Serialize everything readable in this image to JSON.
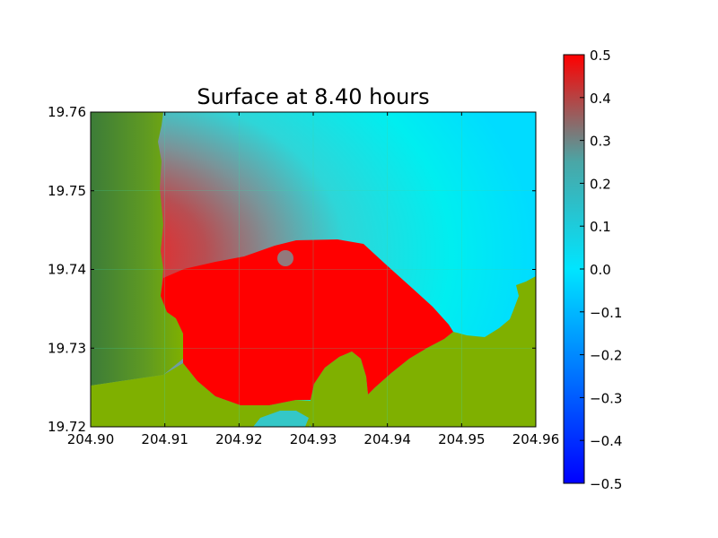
{
  "chart_data": {
    "type": "heatmap",
    "title": "Surface at 8.40 hours",
    "xlabel": "",
    "ylabel": "",
    "xlim": [
      204.9,
      204.96
    ],
    "ylim": [
      19.72,
      19.76
    ],
    "x_ticks": [
      "204.90",
      "204.91",
      "204.92",
      "204.93",
      "204.94",
      "204.95",
      "204.96"
    ],
    "y_ticks": [
      "19.76",
      "19.75",
      "19.74",
      "19.73",
      "19.72"
    ],
    "grid": true,
    "colorbar": {
      "range": [
        -0.5,
        0.5
      ],
      "ticks": [
        "0.5",
        "0.4",
        "0.3",
        "0.2",
        "0.1",
        "0.0",
        "−0.1",
        "−0.2",
        "−0.3",
        "−0.4",
        "−0.5"
      ],
      "colormap": [
        "#0000ff",
        "#00e5ff",
        "#ff0000"
      ],
      "label": ""
    },
    "colors": {
      "land": "#7fb000",
      "land_dark": "#3c7c38",
      "water_positive": "#ff0000",
      "water_mid": "#2adcdc",
      "water_offshore": "#00e8ff"
    }
  }
}
